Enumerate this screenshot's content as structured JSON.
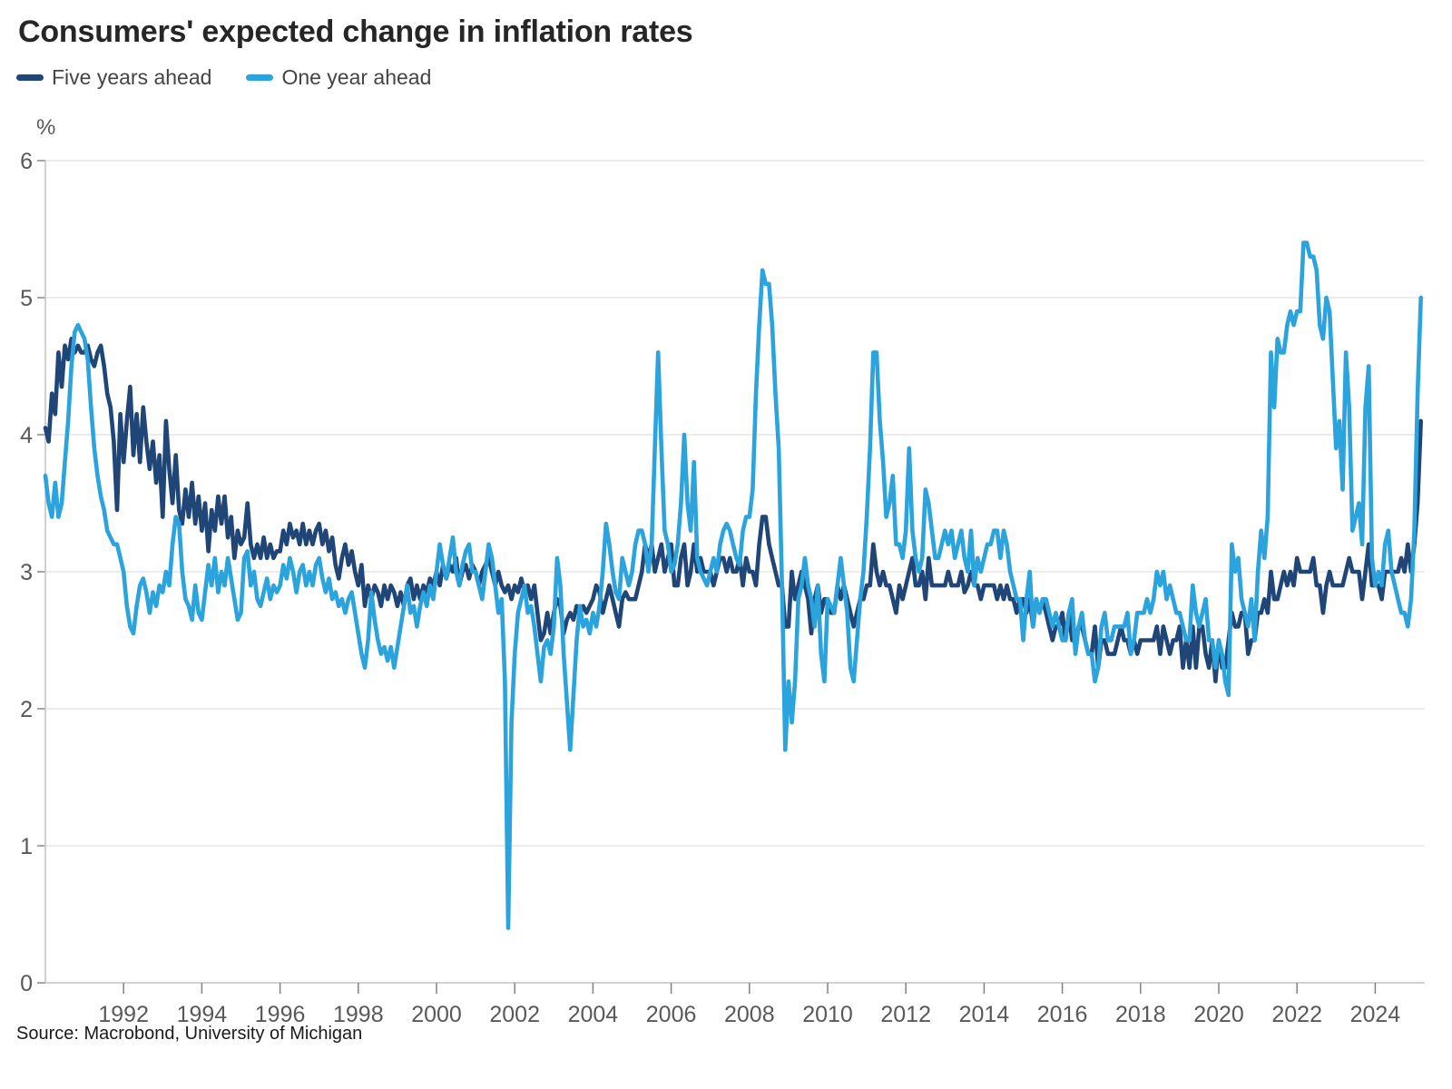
{
  "title": "Consumers' expected change in inflation rates",
  "source": "Source: Macrobond, University of Michigan",
  "chart_data": {
    "type": "line",
    "title": "Consumers' expected change in inflation rates",
    "unit_label": "%",
    "legend_position": "top-left",
    "grid": "horizontal",
    "x_start": {
      "year": 1990,
      "month": 1
    },
    "x_end": {
      "year": 2025,
      "month": 3
    },
    "frequency": "monthly",
    "y_axis": {
      "min": 0,
      "max": 6,
      "ticks": [
        0,
        1,
        2,
        3,
        4,
        5,
        6
      ]
    },
    "x_axis": {
      "tick_years": [
        1992,
        1994,
        1996,
        1998,
        2000,
        2002,
        2004,
        2006,
        2008,
        2010,
        2012,
        2014,
        2016,
        2018,
        2020,
        2022,
        2024
      ]
    },
    "series": [
      {
        "name": "Five years ahead",
        "color": "#1F4677",
        "values": [
          4.05,
          3.95,
          4.3,
          4.15,
          4.6,
          4.35,
          4.65,
          4.55,
          4.7,
          4.6,
          4.65,
          4.6,
          4.6,
          4.65,
          4.55,
          4.5,
          4.6,
          4.65,
          4.5,
          4.3,
          4.2,
          3.95,
          3.45,
          4.15,
          3.8,
          4.1,
          4.35,
          3.85,
          4.15,
          3.8,
          4.2,
          3.95,
          3.75,
          3.95,
          3.65,
          3.85,
          3.4,
          4.1,
          3.75,
          3.5,
          3.85,
          3.45,
          3.35,
          3.6,
          3.4,
          3.65,
          3.35,
          3.55,
          3.3,
          3.5,
          3.15,
          3.45,
          3.3,
          3.55,
          3.35,
          3.55,
          3.25,
          3.4,
          3.1,
          3.3,
          3.2,
          3.25,
          3.5,
          3.2,
          3.1,
          3.2,
          3.1,
          3.25,
          3.1,
          3.2,
          3.1,
          3.15,
          3.15,
          3.3,
          3.2,
          3.35,
          3.25,
          3.3,
          3.2,
          3.35,
          3.2,
          3.3,
          3.2,
          3.3,
          3.35,
          3.2,
          3.3,
          3.15,
          3.25,
          3.05,
          2.95,
          3.1,
          3.2,
          3.05,
          3.15,
          3.0,
          2.9,
          3.05,
          2.75,
          2.9,
          2.8,
          2.9,
          2.85,
          2.75,
          2.9,
          2.8,
          2.9,
          2.85,
          2.75,
          2.85,
          2.75,
          2.9,
          2.95,
          2.8,
          2.9,
          2.8,
          2.9,
          2.85,
          2.95,
          2.9,
          3.0,
          2.9,
          3.05,
          2.95,
          3.05,
          3.0,
          3.1,
          2.9,
          3.0,
          3.05,
          2.95,
          3.05,
          3.0,
          2.9,
          3.0,
          3.05,
          3.1,
          3.0,
          2.9,
          3.0,
          2.9,
          2.85,
          2.9,
          2.8,
          2.9,
          2.85,
          2.95,
          2.85,
          2.9,
          2.8,
          2.9,
          2.7,
          2.5,
          2.55,
          2.7,
          2.55,
          2.7,
          2.8,
          2.75,
          2.55,
          2.65,
          2.7,
          2.65,
          2.75,
          2.7,
          2.75,
          2.7,
          2.75,
          2.8,
          2.9,
          2.85,
          2.7,
          2.8,
          2.9,
          2.8,
          2.7,
          2.6,
          2.8,
          2.85,
          2.8,
          2.8,
          2.8,
          2.9,
          3.0,
          3.2,
          3.1,
          3.2,
          3.0,
          3.1,
          3.2,
          3.0,
          3.1,
          3.2,
          2.9,
          2.9,
          3.1,
          3.2,
          2.9,
          3.0,
          3.2,
          3.0,
          3.1,
          3.0,
          3.0,
          3.0,
          2.9,
          3.0,
          3.1,
          3.1,
          3.0,
          3.1,
          3.0,
          3.0,
          3.1,
          2.9,
          3.1,
          3.0,
          3.0,
          2.9,
          3.2,
          3.4,
          3.4,
          3.2,
          3.1,
          3.0,
          2.9,
          2.9,
          2.6,
          2.6,
          3.0,
          2.8,
          2.9,
          3.0,
          2.9,
          2.8,
          2.55,
          2.8,
          2.9,
          2.7,
          2.8,
          2.8,
          2.7,
          2.7,
          2.9,
          2.8,
          2.9,
          2.8,
          2.7,
          2.6,
          2.7,
          2.8,
          2.8,
          2.9,
          2.9,
          3.2,
          3.0,
          2.9,
          3.0,
          2.9,
          2.9,
          2.8,
          2.7,
          2.9,
          2.8,
          2.9,
          3.0,
          3.1,
          2.9,
          2.9,
          3.0,
          2.8,
          3.1,
          2.9,
          2.9,
          2.9,
          2.9,
          2.9,
          3.0,
          2.9,
          2.9,
          2.9,
          3.0,
          2.85,
          2.9,
          3.0,
          2.9,
          2.9,
          2.8,
          2.9,
          2.9,
          2.9,
          2.9,
          2.8,
          2.9,
          2.8,
          2.9,
          2.8,
          2.8,
          2.7,
          2.8,
          2.8,
          2.7,
          2.8,
          2.6,
          2.8,
          2.7,
          2.8,
          2.7,
          2.6,
          2.5,
          2.6,
          2.6,
          2.7,
          2.5,
          2.7,
          2.5,
          2.5,
          2.6,
          2.6,
          2.5,
          2.4,
          2.4,
          2.6,
          2.3,
          2.5,
          2.5,
          2.4,
          2.4,
          2.4,
          2.5,
          2.6,
          2.5,
          2.5,
          2.4,
          2.5,
          2.4,
          2.5,
          2.5,
          2.5,
          2.5,
          2.5,
          2.6,
          2.4,
          2.6,
          2.5,
          2.4,
          2.5,
          2.5,
          2.6,
          2.3,
          2.5,
          2.3,
          2.6,
          2.3,
          2.6,
          2.6,
          2.4,
          2.3,
          2.5,
          2.2,
          2.5,
          2.3,
          2.3,
          2.5,
          2.7,
          2.6,
          2.6,
          2.7,
          2.7,
          2.4,
          2.5,
          2.5,
          2.7,
          2.7,
          2.8,
          2.7,
          3.0,
          2.8,
          2.8,
          2.9,
          3.0,
          2.9,
          3.0,
          2.9,
          3.1,
          3.0,
          3.0,
          3.0,
          3.0,
          3.1,
          2.9,
          2.9,
          2.7,
          2.9,
          3.0,
          2.9,
          2.9,
          2.9,
          2.9,
          3.0,
          3.1,
          3.0,
          3.0,
          3.0,
          2.8,
          3.0,
          3.2,
          2.9,
          2.9,
          2.9,
          2.8,
          3.0,
          3.0,
          3.0,
          3.0,
          3.0,
          3.1,
          3.0,
          3.2,
          3.0,
          3.2,
          3.5,
          4.1
        ]
      },
      {
        "name": "One year ahead",
        "color": "#2BA3DC",
        "values": [
          3.7,
          3.5,
          3.4,
          3.65,
          3.4,
          3.5,
          3.8,
          4.1,
          4.5,
          4.75,
          4.8,
          4.75,
          4.7,
          4.55,
          4.2,
          3.9,
          3.7,
          3.55,
          3.45,
          3.3,
          3.25,
          3.2,
          3.2,
          3.1,
          3.0,
          2.75,
          2.6,
          2.55,
          2.75,
          2.9,
          2.95,
          2.85,
          2.7,
          2.85,
          2.75,
          2.9,
          2.85,
          3.0,
          2.9,
          3.2,
          3.4,
          3.35,
          3.0,
          2.8,
          2.75,
          2.65,
          2.9,
          2.7,
          2.65,
          2.85,
          3.05,
          2.9,
          3.1,
          2.85,
          3.0,
          2.9,
          3.1,
          2.95,
          2.8,
          2.65,
          2.7,
          3.1,
          3.15,
          2.9,
          3.0,
          2.8,
          2.75,
          2.85,
          2.95,
          2.8,
          2.9,
          2.85,
          2.9,
          3.05,
          2.95,
          3.1,
          3.0,
          2.85,
          3.0,
          3.05,
          2.9,
          3.0,
          2.9,
          3.05,
          3.1,
          2.95,
          2.85,
          2.95,
          2.8,
          2.85,
          2.75,
          2.8,
          2.7,
          2.8,
          2.85,
          2.7,
          2.55,
          2.4,
          2.3,
          2.5,
          2.85,
          2.65,
          2.5,
          2.4,
          2.45,
          2.35,
          2.45,
          2.3,
          2.45,
          2.6,
          2.75,
          2.9,
          2.7,
          2.75,
          2.6,
          2.75,
          2.85,
          2.75,
          2.9,
          2.8,
          3.0,
          3.2,
          3.05,
          2.95,
          3.1,
          3.25,
          3.0,
          2.9,
          3.05,
          3.15,
          3.2,
          3.0,
          3.0,
          2.9,
          2.8,
          3.0,
          3.2,
          3.1,
          2.9,
          2.7,
          2.8,
          2.2,
          0.4,
          1.9,
          2.4,
          2.7,
          2.8,
          2.9,
          2.7,
          2.75,
          2.6,
          2.4,
          2.2,
          2.45,
          2.5,
          2.4,
          2.6,
          3.1,
          2.9,
          2.4,
          2.05,
          1.7,
          2.1,
          2.5,
          2.75,
          2.6,
          2.65,
          2.55,
          2.7,
          2.6,
          2.75,
          3.0,
          3.35,
          3.2,
          3.0,
          2.85,
          2.8,
          3.1,
          3.0,
          2.9,
          3.0,
          3.2,
          3.3,
          3.3,
          3.2,
          3.0,
          3.2,
          3.9,
          4.6,
          3.9,
          3.3,
          3.2,
          3.0,
          3.05,
          3.2,
          3.5,
          4.0,
          3.5,
          3.3,
          3.8,
          3.1,
          3.0,
          2.95,
          2.9,
          3.0,
          3.1,
          3.0,
          3.2,
          3.3,
          3.35,
          3.3,
          3.2,
          3.1,
          3.05,
          3.3,
          3.4,
          3.4,
          3.6,
          4.3,
          4.8,
          5.2,
          5.1,
          5.1,
          4.8,
          4.3,
          3.9,
          2.9,
          1.7,
          2.2,
          1.9,
          2.2,
          2.8,
          2.9,
          3.1,
          2.9,
          2.8,
          2.6,
          2.9,
          2.4,
          2.2,
          2.8,
          2.75,
          2.7,
          2.9,
          3.1,
          2.9,
          2.7,
          2.3,
          2.2,
          2.5,
          2.8,
          3.0,
          3.4,
          3.9,
          4.6,
          4.6,
          4.1,
          3.8,
          3.4,
          3.5,
          3.7,
          3.2,
          3.2,
          3.1,
          3.3,
          3.9,
          3.3,
          3.1,
          3.0,
          3.1,
          3.6,
          3.5,
          3.3,
          3.1,
          3.1,
          3.2,
          3.3,
          3.2,
          3.3,
          3.1,
          3.2,
          3.3,
          3.1,
          3.0,
          3.3,
          2.9,
          3.1,
          3.0,
          3.1,
          3.2,
          3.2,
          3.3,
          3.3,
          3.1,
          3.3,
          3.2,
          3.0,
          2.9,
          2.8,
          2.8,
          2.5,
          2.8,
          3.0,
          2.6,
          2.8,
          2.7,
          2.8,
          2.8,
          2.7,
          2.6,
          2.7,
          2.6,
          2.5,
          2.5,
          2.7,
          2.8,
          2.4,
          2.6,
          2.7,
          2.5,
          2.4,
          2.4,
          2.2,
          2.3,
          2.6,
          2.7,
          2.5,
          2.5,
          2.6,
          2.6,
          2.6,
          2.6,
          2.7,
          2.4,
          2.5,
          2.7,
          2.7,
          2.7,
          2.8,
          2.7,
          2.8,
          3.0,
          2.9,
          3.0,
          2.8,
          2.9,
          2.8,
          2.7,
          2.7,
          2.6,
          2.5,
          2.5,
          2.9,
          2.7,
          2.6,
          2.7,
          2.8,
          2.5,
          2.5,
          2.3,
          2.5,
          2.4,
          2.2,
          2.1,
          3.2,
          3.0,
          3.1,
          2.8,
          2.7,
          2.6,
          2.8,
          2.5,
          3.0,
          3.3,
          3.1,
          3.4,
          4.6,
          4.2,
          4.7,
          4.6,
          4.6,
          4.8,
          4.9,
          4.8,
          4.9,
          4.9,
          5.4,
          5.4,
          5.3,
          5.3,
          5.2,
          4.8,
          4.7,
          5.0,
          4.9,
          4.4,
          3.9,
          4.1,
          3.6,
          4.6,
          4.2,
          3.3,
          3.4,
          3.5,
          3.2,
          4.2,
          4.5,
          3.1,
          2.9,
          3.0,
          2.9,
          3.2,
          3.3,
          3.0,
          2.9,
          2.8,
          2.7,
          2.7,
          2.6,
          2.8,
          3.3,
          4.3,
          5.0
        ]
      }
    ]
  },
  "style": {
    "grid_color": "#d9d9d9",
    "axis_color": "#c4c4c4",
    "tick_color": "#808080",
    "tick_label_color": "#595959",
    "title_color": "#262626",
    "legend_text_color": "#444444",
    "background": "#ffffff"
  }
}
